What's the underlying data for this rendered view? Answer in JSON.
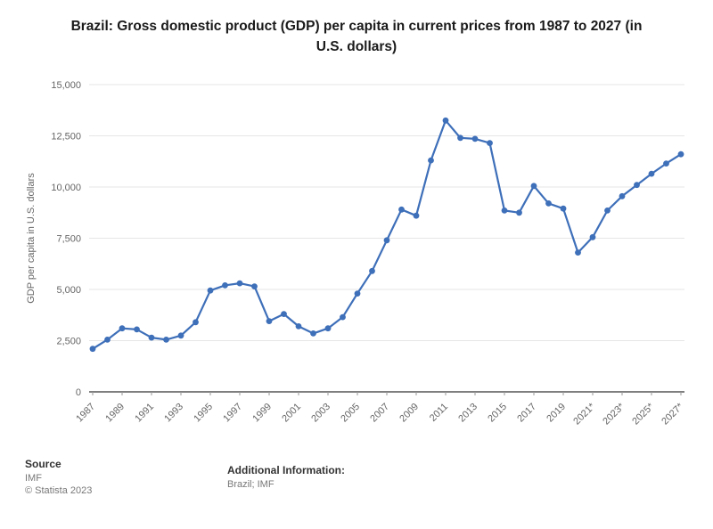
{
  "title": "Brazil: Gross domestic product (GDP) per capita in current prices from 1987 to 2027 (in U.S. dollars)",
  "chart_data": {
    "type": "line",
    "x": [
      1987,
      1988,
      1989,
      1990,
      1991,
      1992,
      1993,
      1994,
      1995,
      1996,
      1997,
      1998,
      1999,
      2000,
      2001,
      2002,
      2003,
      2004,
      2005,
      2006,
      2007,
      2008,
      2009,
      2010,
      2011,
      2012,
      2013,
      2014,
      2015,
      2016,
      2017,
      2018,
      2019,
      2020,
      2021,
      2022,
      2023,
      2024,
      2025,
      2026,
      2027
    ],
    "values": [
      2100,
      2550,
      3100,
      3050,
      2650,
      2550,
      2750,
      3400,
      4950,
      5200,
      5300,
      5150,
      3450,
      3800,
      3200,
      2850,
      3100,
      3650,
      4800,
      5900,
      7400,
      8900,
      8600,
      11300,
      13250,
      12400,
      12350,
      12150,
      8850,
      8750,
      10050,
      9200,
      8950,
      6800,
      7550,
      8850,
      9550,
      10100,
      10650,
      11150,
      11600
    ],
    "xtick_labels": [
      "1987",
      "1989",
      "1991",
      "1993",
      "1995",
      "1997",
      "1999",
      "2001",
      "2003",
      "2005",
      "2007",
      "2009",
      "2011",
      "2013",
      "2015",
      "2017",
      "2019",
      "2021*",
      "2023*",
      "2025*",
      "2027*"
    ],
    "yticks": [
      0,
      2500,
      5000,
      7500,
      10000,
      12500,
      15000
    ],
    "ylim": [
      0,
      15000
    ],
    "xlabel": "",
    "ylabel": "GDP per capita in U.S. dollars",
    "grid": true,
    "legend": "none",
    "line_color": "#3e6fb9",
    "grid_color": "#e6e6e6",
    "axis_color": "#333333",
    "tick_text_color": "#666666"
  },
  "footer": {
    "source_label": "Source",
    "source_value": "IMF",
    "copyright": "© Statista 2023",
    "additional_label": "Additional Information:",
    "additional_value": "Brazil; IMF"
  }
}
